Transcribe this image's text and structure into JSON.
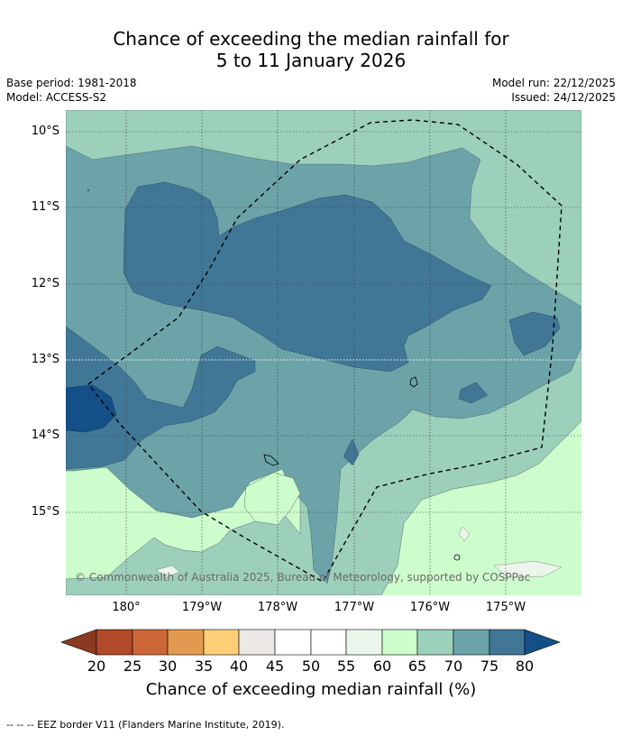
{
  "title": {
    "line1": "Chance of exceeding the median rainfall for",
    "line2": "5 to 11 January 2026"
  },
  "meta": {
    "base_period": "Base period: 1981-2018",
    "model": "Model: ACCESS-S2",
    "model_run": "Model run: 22/12/2025",
    "issued": "Issued: 24/12/2025"
  },
  "map": {
    "lat_labels": [
      "10°S",
      "11°S",
      "12°S",
      "13°S",
      "14°S",
      "15°S"
    ],
    "lon_labels": [
      "180°",
      "179°W",
      "178°W",
      "177°W",
      "176°W",
      "175°W"
    ],
    "copyright": "© Commonwealth of Australia 2025, Bureau of Meteorology, supported by COSPPac"
  },
  "colorbar": {
    "label": "Chance of exceeding median rainfall (%)",
    "ticks": [
      "20",
      "25",
      "30",
      "35",
      "40",
      "45",
      "50",
      "55",
      "60",
      "65",
      "70",
      "75",
      "80"
    ],
    "colors": {
      "lt20": "#8b3a22",
      "c20_25": "#b24a2a",
      "c25_30": "#cd6637",
      "c30_35": "#e29a4e",
      "c35_40": "#fdd077",
      "c40_45": "#ece8e5",
      "c45_50": "#ffffff",
      "c50_55": "#ffffff",
      "c55_60": "#ebf6ea",
      "c60_65": "#cdfdcc",
      "c65_70": "#9dd0bb",
      "c70_75": "#6ba3a9",
      "c75_80": "#417796",
      "gt80": "#154f88"
    }
  },
  "legend_note": "--  --  -- EEZ border V11 (Flanders Marine Institute, 2019)."
}
